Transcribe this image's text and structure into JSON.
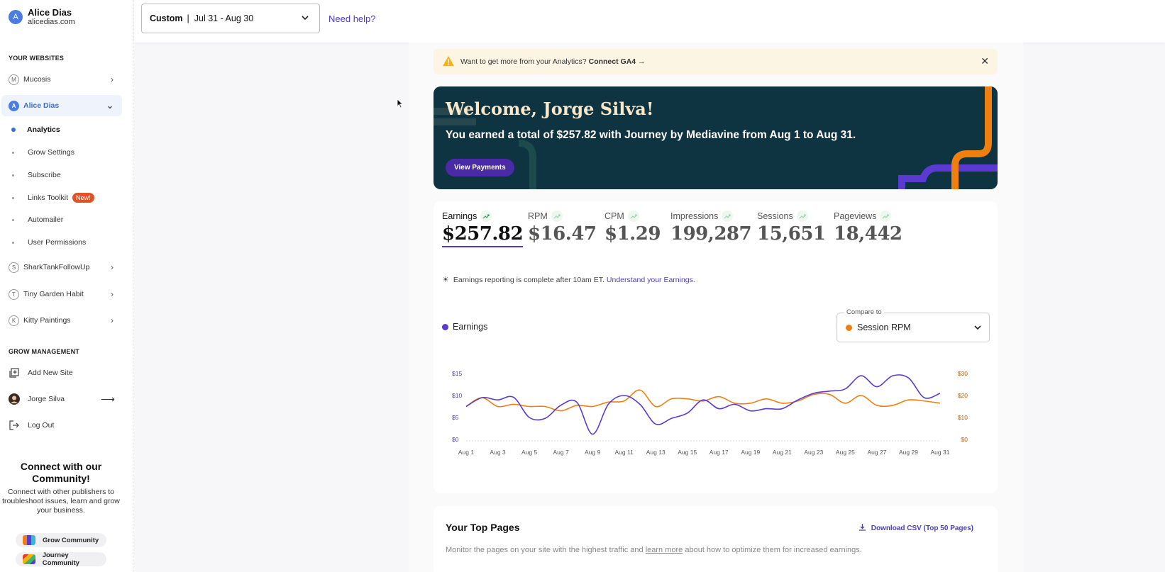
{
  "account": {
    "initial": "A",
    "name": "Alice Dias",
    "domain": "alicedias.com"
  },
  "topbar": {
    "range_label": "Custom",
    "range_value": "Jul 31 - Aug 30",
    "help": "Need help?"
  },
  "sidebar": {
    "websites_heading": "YOUR WEBSITES",
    "sites": [
      {
        "initial": "M",
        "name": "Mucosis"
      },
      {
        "initial": "A",
        "name": "Alice Dias"
      },
      {
        "initial": "S",
        "name": "SharkTankFollowUp"
      },
      {
        "initial": "T",
        "name": "Tiny Garden Habit"
      },
      {
        "initial": "K",
        "name": "Kitty Paintings"
      }
    ],
    "subitems": [
      "Analytics",
      "Grow Settings",
      "Subscribe",
      "Links Toolkit",
      "Automailer",
      "User Permissions"
    ],
    "new_badge": "New!",
    "grow_heading": "GROW MANAGEMENT",
    "add_site": "Add New Site",
    "user": "Jorge Silva",
    "logout": "Log Out",
    "community_title": "Connect with our Community!",
    "community_text": "Connect with other publishers to troubleshoot issues, learn and grow your business.",
    "grow_community": "Grow Community",
    "journey_community": "Journey Community"
  },
  "banner": {
    "text": "Want to get more from your Analytics?",
    "cta": "Connect GA4 →"
  },
  "hero": {
    "title": "Welcome, Jorge Silva!",
    "subtitle": "You earned a total of $257.82 with Journey by Mediavine from Aug 1 to Aug 31.",
    "button": "View Payments"
  },
  "metrics": [
    {
      "label": "Earnings",
      "value": "$257.82"
    },
    {
      "label": "RPM",
      "value": "$16.47"
    },
    {
      "label": "CPM",
      "value": "$1.29"
    },
    {
      "label": "Impressions",
      "value": "199,287"
    },
    {
      "label": "Sessions",
      "value": "15,651"
    },
    {
      "label": "Pageviews",
      "value": "18,442"
    }
  ],
  "note": {
    "text": "Earnings reporting is complete after 10am ET.",
    "link": "Understand your Earnings."
  },
  "compare": {
    "label": "Compare to",
    "value": "Session RPM"
  },
  "colors": {
    "earnings": "#5a3ad0",
    "rpm": "#f07f12",
    "accent": "#4a3dc2"
  },
  "chart_data": {
    "type": "line",
    "x": [
      "Aug 1",
      "Aug 2",
      "Aug 3",
      "Aug 4",
      "Aug 5",
      "Aug 6",
      "Aug 7",
      "Aug 8",
      "Aug 9",
      "Aug 10",
      "Aug 11",
      "Aug 12",
      "Aug 13",
      "Aug 14",
      "Aug 15",
      "Aug 16",
      "Aug 17",
      "Aug 18",
      "Aug 19",
      "Aug 20",
      "Aug 21",
      "Aug 22",
      "Aug 23",
      "Aug 24",
      "Aug 25",
      "Aug 26",
      "Aug 27",
      "Aug 28",
      "Aug 29",
      "Aug 30",
      "Aug 31"
    ],
    "tick_labels": [
      "Aug 1",
      "Aug 3",
      "Aug 5",
      "Aug 7",
      "Aug 9",
      "Aug 11",
      "Aug 13",
      "Aug 15",
      "Aug 17",
      "Aug 19",
      "Aug 21",
      "Aug 23",
      "Aug 25",
      "Aug 27",
      "Aug 29",
      "Aug 31"
    ],
    "series": [
      {
        "name": "Earnings",
        "axis": "left",
        "values": [
          7.5,
          9.5,
          9.0,
          9.6,
          5.0,
          4.8,
          7.8,
          8.5,
          1.2,
          8.0,
          10.0,
          8.0,
          3.5,
          4.8,
          6.0,
          9.0,
          7.0,
          8.0,
          6.5,
          7.0,
          7.0,
          9.0,
          10.5,
          11.0,
          11.5,
          14.5,
          12.0,
          14.5,
          14.0,
          9.5,
          10.5
        ]
      },
      {
        "name": "Session RPM",
        "axis": "right",
        "values": [
          15,
          19,
          15,
          16,
          15,
          15,
          13,
          15.5,
          15,
          17,
          17.5,
          22.5,
          15,
          18.5,
          18.5,
          17.5,
          19.5,
          16.5,
          16.5,
          18.5,
          16.5,
          17.5,
          20.5,
          20.5,
          16.5,
          20,
          15.5,
          15.5,
          18,
          17.5,
          16.5
        ]
      }
    ],
    "yleft": {
      "ticks": [
        "$0",
        "$5",
        "$10",
        "$15"
      ],
      "range": [
        0,
        15
      ]
    },
    "yright": {
      "ticks": [
        "$0",
        "$10",
        "$20",
        "$30"
      ],
      "range": [
        0,
        30
      ]
    }
  },
  "top_pages": {
    "title": "Your Top Pages",
    "download": "Download CSV (Top 50 Pages)",
    "desc_before": "Monitor the pages on your site with the highest traffic and",
    "desc_link": "learn more",
    "desc_after": "about how to optimize them for increased earnings."
  }
}
